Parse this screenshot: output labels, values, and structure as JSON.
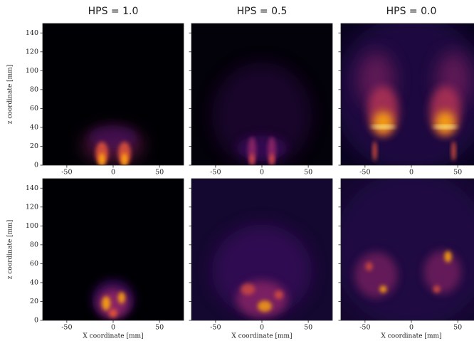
{
  "chart_data": [
    {
      "type": "heatmap",
      "title": "HPS = 1.0",
      "ylabel": "z coordinate [mm]",
      "color": "#000004",
      "xlim": [
        -76,
        76
      ],
      "ylim": [
        0,
        150
      ],
      "xticks": [
        -50,
        0,
        50
      ],
      "yticks": [
        0,
        20,
        40,
        60,
        80,
        100,
        120,
        140
      ]
    },
    {
      "type": "heatmap",
      "title": "HPS = 0.5",
      "color": "#030109",
      "xlim": [
        -76,
        76
      ],
      "ylim": [
        0,
        150
      ],
      "xticks": [
        -50,
        0,
        50
      ],
      "yticks": [
        0,
        20,
        40,
        60,
        80,
        100,
        120,
        140
      ]
    },
    {
      "type": "heatmap",
      "title": "HPS = 0.0",
      "color": "#0a0420",
      "xlim": [
        -76,
        76
      ],
      "ylim": [
        0,
        150
      ],
      "xticks": [
        -50,
        0,
        50
      ],
      "yticks": [
        0,
        20,
        40,
        60,
        80,
        100,
        120,
        140
      ]
    },
    {
      "type": "heatmap",
      "ylabel": "z coordinate [mm]",
      "xlabel": "X coordinate [mm]",
      "color": "#000004",
      "xlim": [
        -76,
        76
      ],
      "ylim": [
        0,
        150
      ],
      "xticks": [
        -50,
        0,
        50
      ],
      "yticks": [
        0,
        20,
        40,
        60,
        80,
        100,
        120,
        140
      ]
    },
    {
      "type": "heatmap",
      "xlabel": "X coordinate [mm]",
      "color": "#140830",
      "xlim": [
        -76,
        76
      ],
      "ylim": [
        0,
        150
      ],
      "xticks": [
        -50,
        0,
        50
      ],
      "yticks": [
        0,
        20,
        40,
        60,
        80,
        100,
        120,
        140
      ]
    },
    {
      "type": "heatmap",
      "xlabel": "X coordinate [mm]",
      "color": "#140830",
      "xlim": [
        -76,
        76
      ],
      "ylim": [
        0,
        150
      ],
      "xticks": [
        -50,
        0,
        50
      ],
      "yticks": [
        0,
        20,
        40,
        60,
        80,
        100,
        120,
        140
      ]
    }
  ]
}
